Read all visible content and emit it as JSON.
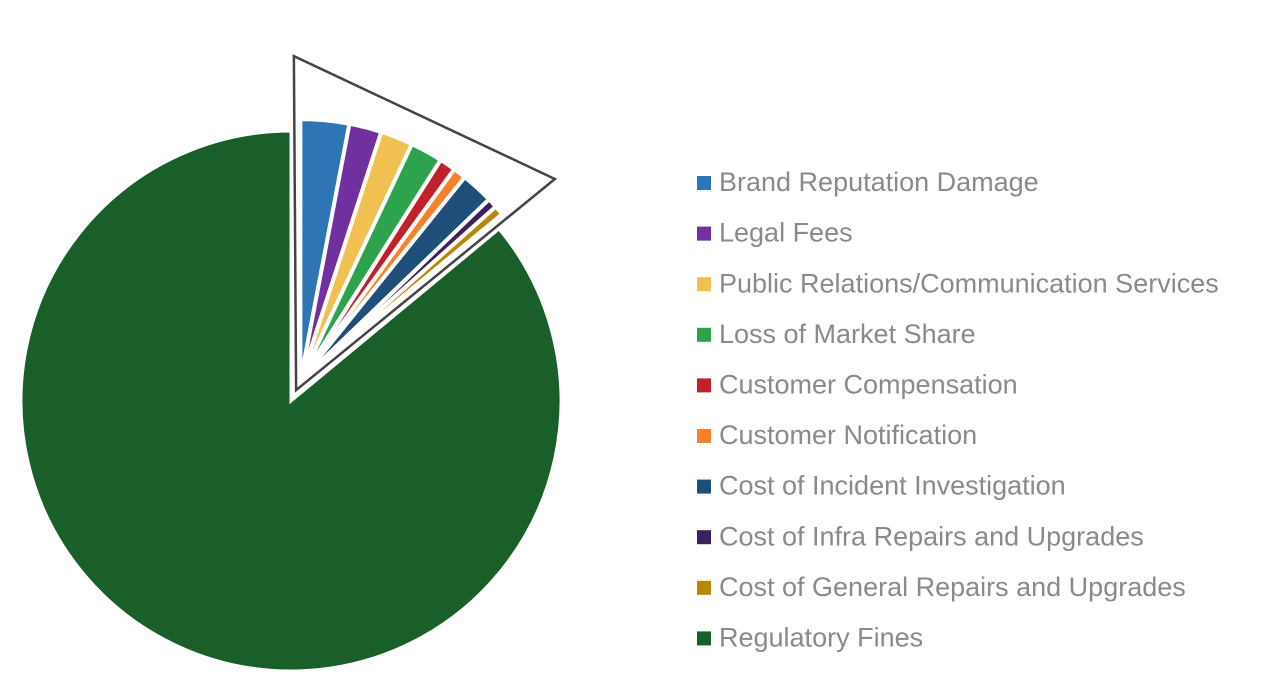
{
  "chart_data": {
    "type": "pie",
    "categories": [
      "Brand Reputation Damage",
      "Legal Fees",
      "Public Relations/Communication Services",
      "Loss of Market Share",
      "Customer Compensation",
      "Customer Notification",
      "Cost of Incident Investigation",
      "Cost of Infra Repairs and Upgrades",
      "Cost of General Repairs and Upgrades",
      "Regulatory Fines"
    ],
    "values": [
      3,
      2,
      2,
      2,
      1,
      0.8,
      2,
      0.6,
      0.6,
      86
    ],
    "colors": [
      "#2e75b6",
      "#7030a0",
      "#f0c050",
      "#2ca34c",
      "#c0202a",
      "#f5822a",
      "#1f4e79",
      "#3b1f5e",
      "#b8860b",
      "#1a5e2a"
    ]
  }
}
